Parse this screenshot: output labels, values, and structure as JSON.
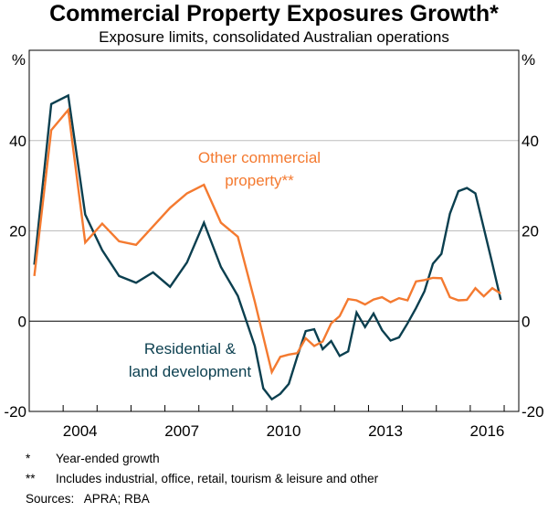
{
  "chart_data": {
    "type": "line",
    "title": "Commercial Property Exposures Growth*",
    "subtitle": "Exposure limits, consolidated Australian operations",
    "xlabel": "",
    "ylabel": "%",
    "ylabel_right": "%",
    "xlim": [
      2003.0,
      2017.43
    ],
    "ylim": [
      -20,
      60
    ],
    "yticks": [
      -20,
      0,
      20,
      40
    ],
    "ytick_labels": [
      "-20",
      "0",
      "20",
      "40"
    ],
    "xticks_years": [
      2004,
      2005,
      2006,
      2007,
      2008,
      2009,
      2010,
      2011,
      2012,
      2013,
      2014,
      2015,
      2016,
      2017
    ],
    "xtick_labels": [
      "2004",
      "2007",
      "2010",
      "2013",
      "2016"
    ],
    "grid": true,
    "series": [
      {
        "name": "Residential & land development",
        "label_lines": [
          "Residential &",
          "land development"
        ],
        "color": "#0b3f4f",
        "x": [
          2003.15,
          2003.65,
          2004.15,
          2004.65,
          2005.15,
          2005.65,
          2006.15,
          2006.65,
          2007.15,
          2007.65,
          2008.15,
          2008.65,
          2009.15,
          2009.65,
          2009.9,
          2010.15,
          2010.4,
          2010.65,
          2010.9,
          2011.15,
          2011.4,
          2011.65,
          2011.9,
          2012.15,
          2012.4,
          2012.65,
          2012.9,
          2013.15,
          2013.4,
          2013.65,
          2013.9,
          2014.15,
          2014.4,
          2014.65,
          2014.9,
          2015.15,
          2015.4,
          2015.65,
          2015.9,
          2016.15,
          2016.4,
          2016.65,
          2016.9
        ],
        "values": [
          12.5,
          48.1,
          50.0,
          23.6,
          15.7,
          10.0,
          8.5,
          10.8,
          7.6,
          13.0,
          21.8,
          12.0,
          5.6,
          -5.5,
          -14.9,
          -17.3,
          -16.1,
          -13.9,
          -7.9,
          -2.2,
          -1.8,
          -6.2,
          -4.4,
          -7.7,
          -6.7,
          1.9,
          -1.3,
          1.7,
          -2.0,
          -4.3,
          -3.6,
          -0.5,
          2.9,
          6.6,
          12.7,
          14.9,
          23.8,
          28.8,
          29.5,
          28.3,
          20.6,
          12.8,
          4.7
        ]
      },
      {
        "name": "Other commercial property**",
        "label_lines": [
          "Other commercial",
          "property**"
        ],
        "color": "#f47a30",
        "x": [
          2003.15,
          2003.65,
          2004.15,
          2004.65,
          2005.15,
          2005.65,
          2006.15,
          2006.65,
          2007.15,
          2007.65,
          2008.15,
          2008.65,
          2009.15,
          2009.65,
          2009.9,
          2010.15,
          2010.4,
          2010.65,
          2010.9,
          2011.15,
          2011.4,
          2011.65,
          2011.9,
          2012.15,
          2012.4,
          2012.65,
          2012.9,
          2013.15,
          2013.4,
          2013.65,
          2013.9,
          2014.15,
          2014.4,
          2014.65,
          2014.9,
          2015.15,
          2015.4,
          2015.65,
          2015.9,
          2016.15,
          2016.4,
          2016.65,
          2016.9
        ],
        "values": [
          10.0,
          42.3,
          46.8,
          17.4,
          21.6,
          17.7,
          16.9,
          21.0,
          25.1,
          28.3,
          30.2,
          21.8,
          18.7,
          4.3,
          -3.5,
          -11.3,
          -7.9,
          -7.4,
          -7.1,
          -3.8,
          -5.5,
          -4.5,
          -0.5,
          1.1,
          4.9,
          4.6,
          3.7,
          4.8,
          5.3,
          4.2,
          5.1,
          4.6,
          8.8,
          9.1,
          9.6,
          9.5,
          5.3,
          4.6,
          4.7,
          7.3,
          5.5,
          7.3,
          6.1
        ]
      }
    ],
    "footnotes": [
      {
        "mark": "*",
        "text": "Year-ended growth"
      },
      {
        "mark": "**",
        "text": "Includes industrial, office, retail, tourism & leisure and other"
      }
    ],
    "sources": "Sources:   APRA; RBA"
  }
}
